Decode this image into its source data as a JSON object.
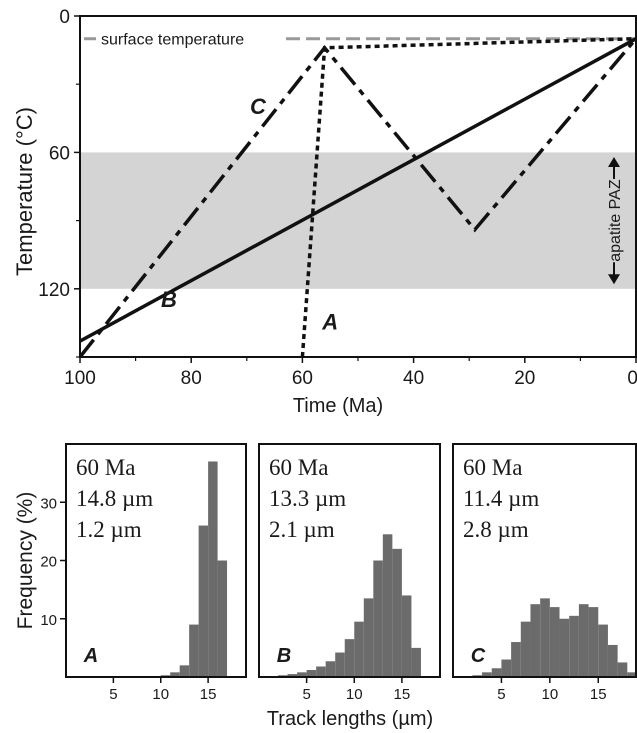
{
  "chart_data": [
    {
      "type": "line",
      "xlabel": "Time (Ma)",
      "ylabel": "Temperature (°C)",
      "xlim": [
        100,
        0
      ],
      "ylim": [
        0,
        150
      ],
      "y_inverted": true,
      "x_ticks": [
        "100",
        "80",
        "60",
        "40",
        "20",
        "0"
      ],
      "y_ticks": [
        "0",
        "60",
        "120"
      ],
      "grid": false,
      "band": {
        "y_range": [
          60,
          120
        ],
        "label": "apatite PAZ",
        "color": "#d4d4d4"
      },
      "reference_line": {
        "y": 10,
        "label": "surface temperature",
        "color": "#999999"
      },
      "series": [
        {
          "name": "A",
          "style": "dotted",
          "x": [
            60,
            56,
            0
          ],
          "y": [
            150,
            14,
            10
          ]
        },
        {
          "name": "B",
          "style": "solid",
          "x": [
            100,
            0
          ],
          "y": [
            143,
            10
          ]
        },
        {
          "name": "C",
          "style": "dash-dot",
          "x": [
            100,
            56,
            29,
            0
          ],
          "y": [
            150,
            14,
            94,
            10
          ]
        }
      ]
    },
    {
      "type": "bar",
      "panel": "A",
      "annotations": [
        "60 Ma",
        "14.8 µm",
        "1.2 µm"
      ],
      "x": [
        0.5,
        1.5,
        2.5,
        3.5,
        4.5,
        5.5,
        6.5,
        7.5,
        8.5,
        9.5,
        10.5,
        11.5,
        12.5,
        13.5,
        14.5,
        15.5,
        16.5
      ],
      "values": [
        0,
        0,
        0,
        0,
        0,
        0,
        0,
        0,
        0,
        0,
        0.3,
        0.8,
        2,
        9,
        26,
        37,
        20
      ],
      "xlim": [
        0,
        19
      ],
      "x_ticks": [
        "5",
        "10",
        "15"
      ]
    },
    {
      "type": "bar",
      "panel": "B",
      "annotations": [
        "60 Ma",
        "13.3 µm",
        "2.1 µm"
      ],
      "x": [
        0.5,
        1.5,
        2.5,
        3.5,
        4.5,
        5.5,
        6.5,
        7.5,
        8.5,
        9.5,
        10.5,
        11.5,
        12.5,
        13.5,
        14.5,
        15.5,
        16.5
      ],
      "values": [
        0,
        0,
        0.3,
        0.5,
        0.8,
        1.2,
        1.8,
        2.7,
        4.2,
        6.5,
        9.5,
        13.5,
        20,
        24.5,
        22,
        14,
        5
      ],
      "xlim": [
        0,
        19
      ],
      "x_ticks": [
        "5",
        "10",
        "15"
      ]
    },
    {
      "type": "bar",
      "panel": "C",
      "annotations": [
        "60 Ma",
        "11.4 µm",
        "2.8 µm"
      ],
      "x": [
        0.5,
        1.5,
        2.5,
        3.5,
        4.5,
        5.5,
        6.5,
        7.5,
        8.5,
        9.5,
        10.5,
        11.5,
        12.5,
        13.5,
        14.5,
        15.5,
        16.5,
        17.5,
        18.5
      ],
      "values": [
        0,
        0,
        0.3,
        0.8,
        1.5,
        3,
        6,
        9.5,
        12.5,
        13.5,
        12,
        10,
        10.5,
        12.5,
        12,
        9,
        5.5,
        2.5,
        0.8
      ],
      "xlim": [
        0,
        19
      ],
      "x_ticks": [
        "5",
        "10",
        "15"
      ]
    }
  ],
  "histogram_axes": {
    "xlabel": "Track lengths (µm)",
    "ylabel": "Frequency (%)",
    "ylim": [
      0,
      40
    ],
    "y_ticks": [
      "10",
      "20",
      "30"
    ],
    "bar_color": "#6b6b6b"
  }
}
